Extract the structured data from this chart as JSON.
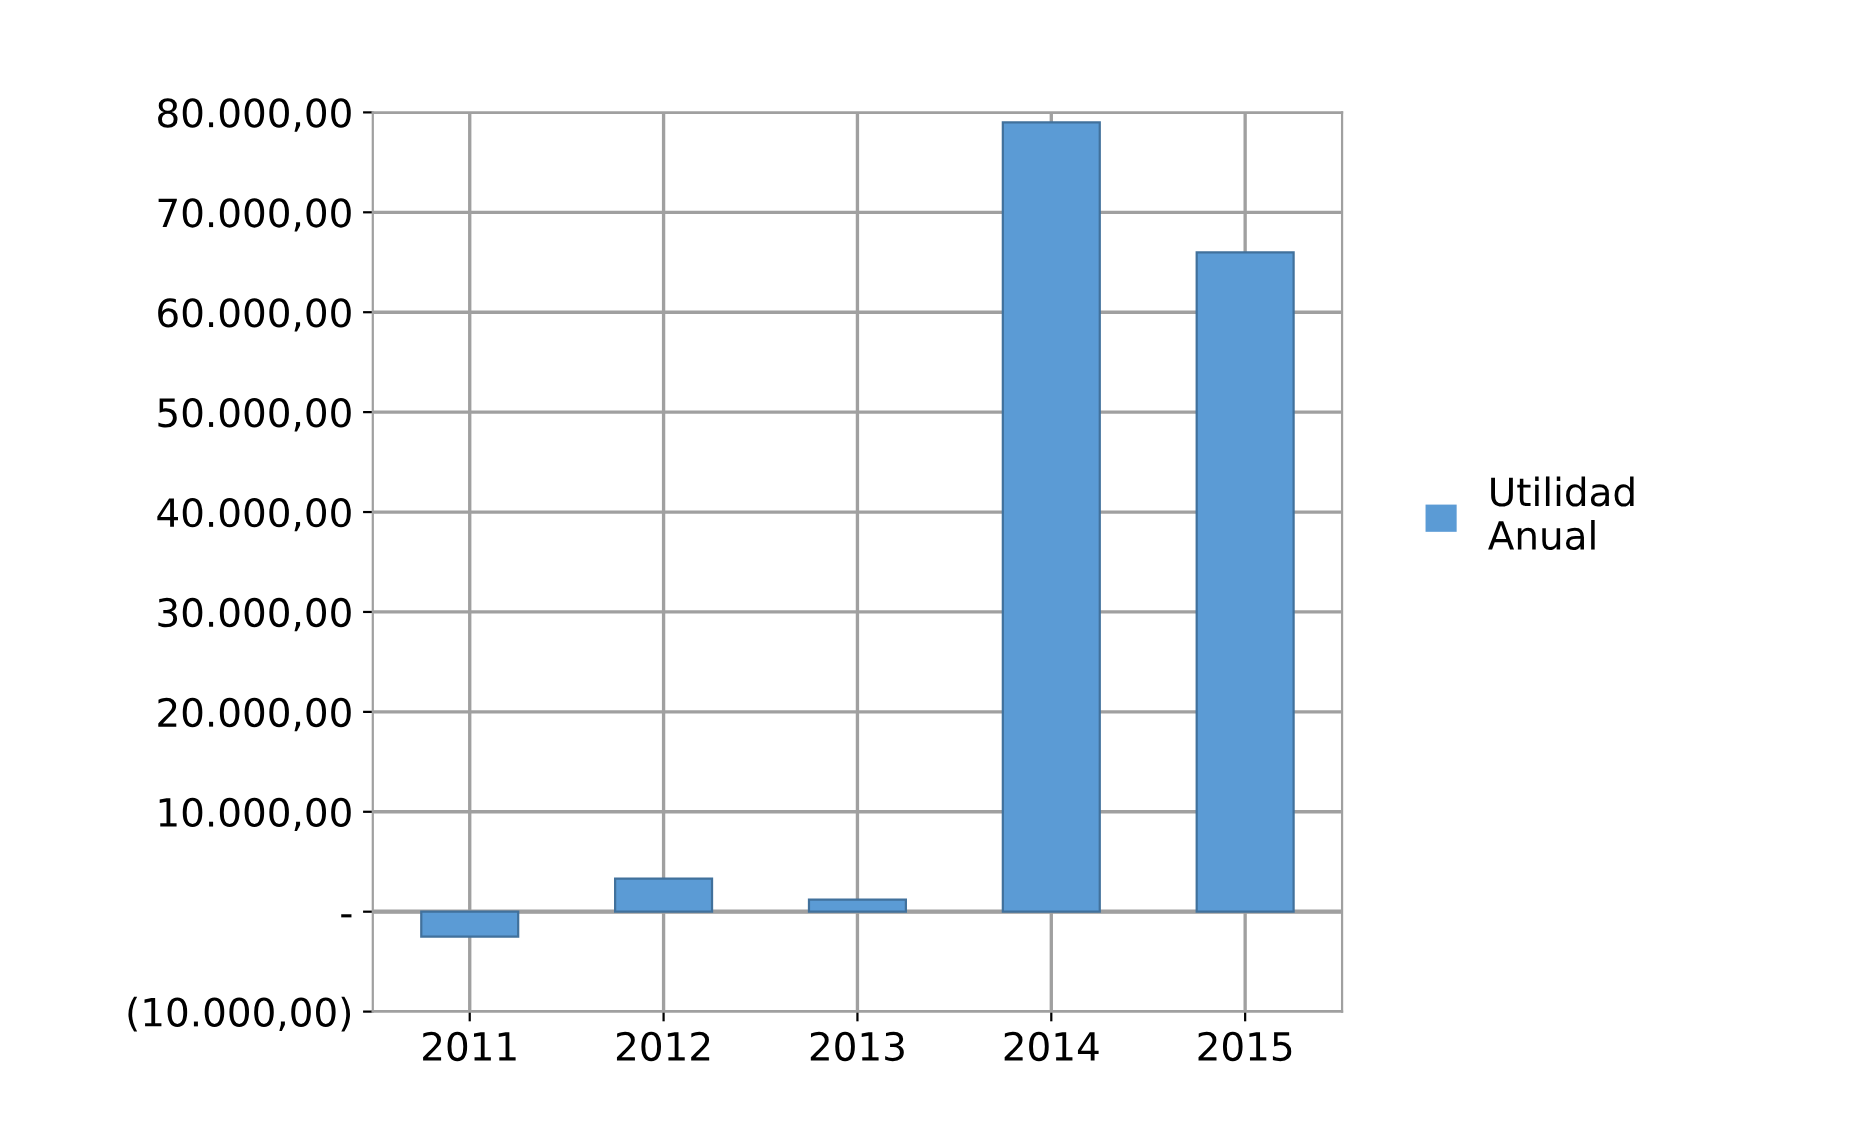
{
  "chart_data": {
    "type": "bar",
    "categories": [
      "2011",
      "2012",
      "2013",
      "2014",
      "2015"
    ],
    "series": [
      {
        "name": "Utilidad\nAnual",
        "color": "#5b9bd5",
        "values": [
          -2500,
          3300,
          1200,
          79000,
          66000
        ]
      }
    ],
    "ylim": [
      -10000,
      80000
    ],
    "yticks": [
      {
        "value": -10000,
        "label": "(10.000,00)"
      },
      {
        "value": 0,
        "label": "-"
      },
      {
        "value": 10000,
        "label": "10.000,00"
      },
      {
        "value": 20000,
        "label": "20.000,00"
      },
      {
        "value": 30000,
        "label": "30.000,00"
      },
      {
        "value": 40000,
        "label": "40.000,00"
      },
      {
        "value": 50000,
        "label": "50.000,00"
      },
      {
        "value": 60000,
        "label": "60.000,00"
      },
      {
        "value": 70000,
        "label": "70.000,00"
      },
      {
        "value": 80000,
        "label": "80.000,00"
      }
    ],
    "grid": true,
    "legend": "right"
  }
}
